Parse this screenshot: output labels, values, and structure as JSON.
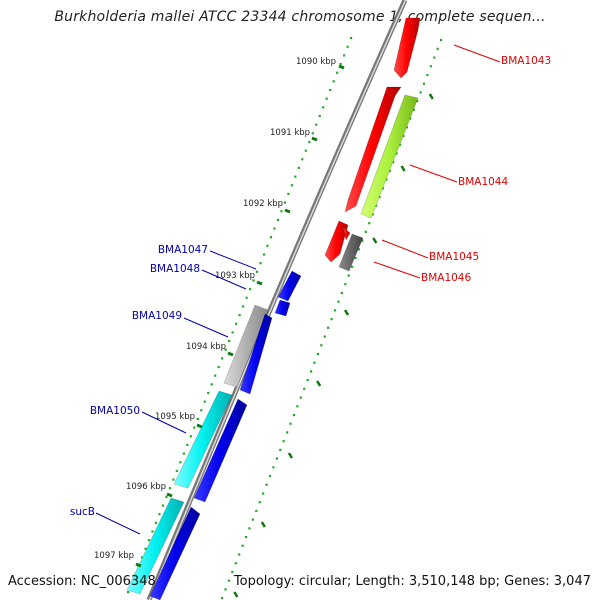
{
  "title": "Burkholderia mallei ATCC 23344 chromosome 1, complete sequen...",
  "accession": "Accession: NC_006348",
  "topology": "Topology: circular; Length: 3,510,148 bp; Genes: 3,047",
  "ticks": [
    "1090 kbp",
    "1091 kbp",
    "1092 kbp",
    "1093 kbp",
    "1094 kbp",
    "1095 kbp",
    "1096 kbp",
    "1097 kbp"
  ],
  "genes": [
    {
      "name": "BMA1043",
      "color": "#e00000"
    },
    {
      "name": "BMA1044",
      "color": "#e00000"
    },
    {
      "name": "BMA1045",
      "color": "#e00000"
    },
    {
      "name": "BMA1046",
      "color": "#e00000"
    },
    {
      "name": "BMA1047",
      "color": "#0000aa"
    },
    {
      "name": "BMA1048",
      "color": "#0000aa"
    },
    {
      "name": "BMA1049",
      "color": "#0000aa"
    },
    {
      "name": "BMA1050",
      "color": "#0000aa"
    },
    {
      "name": "sucB",
      "color": "#0000aa"
    }
  ],
  "colors": {
    "forward_gene": "#ff0000",
    "forward_gene_alt": "#aaf03c",
    "reverse_gene": "#0000ee",
    "reverse_gene_alt": "#00eeee",
    "pseudo_gene": "#aaaaaa",
    "tick_dots": "#22aa22",
    "tick_major": "#117711",
    "backbone": "#888888"
  }
}
